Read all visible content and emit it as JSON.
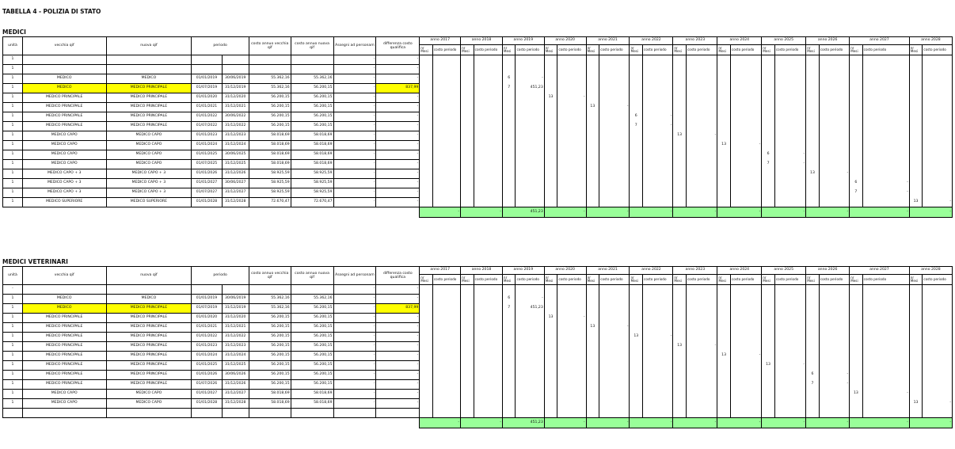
{
  "title": "TABELLA 4 - POLIZIA DI STATO",
  "years": [
    "anno 2017",
    "anno 2018",
    "anno 2019",
    "anno 2020",
    "anno 2021",
    "anno 2022",
    "anno 2023",
    "anno 2024",
    "anno 2025",
    "anno 2026",
    "anno 2027",
    "anno 2028"
  ],
  "headers": {
    "unita": "unità",
    "vecchia": "vecchia qif",
    "nuova": "nuova qif",
    "periodo": "periodo",
    "costo_vecchia": "costo annuo vecchia qif",
    "costo_nuova": "costo annuo nuova qif",
    "assegni": "Assegni ad personam",
    "differenza": "differenza costo qualifica",
    "mesi": "nr Mesi",
    "costo_periodo": "costo periodo"
  },
  "sections": [
    {
      "name": "MEDICI",
      "rows": [
        {
          "u": "1",
          "old": "",
          "new": "",
          "from": "",
          "to": "",
          "c_old": "",
          "c_new": "",
          "ass": "-",
          "diff": "-",
          "y": null,
          "m": "",
          "cp": ""
        },
        {
          "u": "1",
          "old": "",
          "new": "",
          "from": "",
          "to": "",
          "c_old": "",
          "c_new": "",
          "ass": "-",
          "diff": "-",
          "y": null,
          "m": "",
          "cp": ""
        },
        {
          "u": "1",
          "old": "MEDICO",
          "new": "MEDICO",
          "from": "01/01/2019",
          "to": "30/06/2019",
          "c_old": "55.362,16",
          "c_new": "55.362,16",
          "ass": "-",
          "diff": "-",
          "y": 2,
          "m": "6",
          "cp": "-"
        },
        {
          "u": "1",
          "old": "MEDICO",
          "new": "MEDICO PRINCIPALE",
          "from": "01/07/2019",
          "to": "31/12/2019",
          "c_old": "55.362,16",
          "c_new": "56.200,15",
          "ass": "-",
          "diff": "837,99",
          "y": 2,
          "m": "7",
          "cp": "451,23",
          "hl": true
        },
        {
          "u": "1",
          "old": "MEDICO PRINCIPALE",
          "new": "MEDICO PRINCIPALE",
          "from": "01/01/2020",
          "to": "31/12/2020",
          "c_old": "56.200,15",
          "c_new": "56.200,15",
          "ass": "-",
          "diff": "-",
          "y": 3,
          "m": "13",
          "cp": "-"
        },
        {
          "u": "1",
          "old": "MEDICO PRINCIPALE",
          "new": "MEDICO PRINCIPALE",
          "from": "01/01/2021",
          "to": "31/12/2021",
          "c_old": "56.200,15",
          "c_new": "56.200,15",
          "ass": "-",
          "diff": "-",
          "y": 4,
          "m": "13",
          "cp": "-"
        },
        {
          "u": "1",
          "old": "MEDICO PRINCIPALE",
          "new": "MEDICO PRINCIPALE",
          "from": "01/01/2022",
          "to": "30/06/2022",
          "c_old": "56.200,15",
          "c_new": "56.200,15",
          "ass": "-",
          "diff": "-",
          "y": 5,
          "m": "6",
          "cp": "-"
        },
        {
          "u": "1",
          "old": "MEDICO PRINCIPALE",
          "new": "MEDICO PRINCIPALE",
          "from": "01/07/2022",
          "to": "31/12/2022",
          "c_old": "56.200,15",
          "c_new": "56.200,15",
          "ass": "-",
          "diff": "-",
          "y": 5,
          "m": "7",
          "cp": "-"
        },
        {
          "u": "1",
          "old": "MEDICO CAPO",
          "new": "MEDICO CAPO",
          "from": "01/01/2023",
          "to": "31/12/2023",
          "c_old": "58.018,69",
          "c_new": "58.018,69",
          "ass": "-",
          "diff": "-",
          "y": 6,
          "m": "13",
          "cp": "-"
        },
        {
          "u": "1",
          "old": "MEDICO CAPO",
          "new": "MEDICO CAPO",
          "from": "01/01/2024",
          "to": "31/12/2024",
          "c_old": "58.018,69",
          "c_new": "58.018,69",
          "ass": "-",
          "diff": "-",
          "y": 7,
          "m": "13",
          "cp": "-"
        },
        {
          "u": "1",
          "old": "MEDICO CAPO",
          "new": "MEDICO CAPO",
          "from": "01/01/2025",
          "to": "30/06/2025",
          "c_old": "58.018,69",
          "c_new": "58.018,69",
          "ass": "-",
          "diff": "-",
          "y": 8,
          "m": "6",
          "cp": "-"
        },
        {
          "u": "1",
          "old": "MEDICO CAPO",
          "new": "MEDICO CAPO",
          "from": "01/07/2025",
          "to": "31/12/2025",
          "c_old": "58.018,69",
          "c_new": "58.018,69",
          "ass": "-",
          "diff": "-",
          "y": 8,
          "m": "7",
          "cp": "-"
        },
        {
          "u": "1",
          "old": "MEDICO CAPO + 3",
          "new": "MEDICO CAPO + 3",
          "from": "01/01/2026",
          "to": "31/12/2026",
          "c_old": "58.925,59",
          "c_new": "58.925,59",
          "ass": "-",
          "diff": "-",
          "y": 9,
          "m": "13",
          "cp": "-"
        },
        {
          "u": "1",
          "old": "MEDICO CAPO + 3",
          "new": "MEDICO CAPO + 3",
          "from": "01/01/2027",
          "to": "30/06/2027",
          "c_old": "58.925,59",
          "c_new": "58.925,59",
          "ass": "-",
          "diff": "-",
          "y": 10,
          "m": "6",
          "cp": "-"
        },
        {
          "u": "1",
          "old": "MEDICO CAPO + 3",
          "new": "MEDICO CAPO + 3",
          "from": "01/07/2027",
          "to": "31/12/2027",
          "c_old": "58.925,59",
          "c_new": "58.925,59",
          "ass": "-",
          "diff": "-",
          "y": 10,
          "m": "7",
          "cp": "-"
        },
        {
          "u": "1",
          "old": "MEDICO SUPERIORE",
          "new": "MEDICO SUPERIORE",
          "from": "01/01/2028",
          "to": "31/12/2028",
          "c_old": "72.670,47",
          "c_new": "72.670,47",
          "ass": "-",
          "diff": "-",
          "y": 11,
          "m": "13",
          "cp": "-"
        }
      ],
      "totals": [
        "-",
        "-",
        "451,23",
        "-",
        "-",
        "-",
        "-",
        "-",
        "-",
        "-",
        "-",
        "-"
      ]
    },
    {
      "name": "MEDICI VETERINARI",
      "rows": [
        {
          "u": "-",
          "old": "",
          "new": "",
          "from": "",
          "to": "",
          "c_old": "",
          "c_new": "",
          "ass": "-",
          "diff": "-",
          "y": null,
          "m": "",
          "cp": ""
        },
        {
          "u": "1",
          "old": "MEDICO",
          "new": "MEDICO",
          "from": "01/01/2019",
          "to": "30/06/2019",
          "c_old": "55.362,16",
          "c_new": "55.362,16",
          "ass": "-",
          "diff": "-",
          "y": 2,
          "m": "6",
          "cp": "-"
        },
        {
          "u": "1",
          "old": "MEDICO",
          "new": "MEDICO PRINCIPALE",
          "from": "01/07/2019",
          "to": "31/12/2019",
          "c_old": "55.362,16",
          "c_new": "56.200,15",
          "ass": "-",
          "diff": "837,99",
          "y": 2,
          "m": "7",
          "cp": "451,23",
          "hl": true
        },
        {
          "u": "1",
          "old": "MEDICO PRINCIPALE",
          "new": "MEDICO PRINCIPALE",
          "from": "01/01/2020",
          "to": "31/12/2020",
          "c_old": "56.200,15",
          "c_new": "56.200,15",
          "ass": "-",
          "diff": "-",
          "y": 3,
          "m": "13",
          "cp": "-"
        },
        {
          "u": "1",
          "old": "MEDICO PRINCIPALE",
          "new": "MEDICO PRINCIPALE",
          "from": "01/01/2021",
          "to": "31/12/2021",
          "c_old": "56.200,15",
          "c_new": "56.200,15",
          "ass": "-",
          "diff": "-",
          "y": 4,
          "m": "13",
          "cp": "-"
        },
        {
          "u": "1",
          "old": "MEDICO PRINCIPALE",
          "new": "MEDICO PRINCIPALE",
          "from": "01/01/2022",
          "to": "31/12/2022",
          "c_old": "56.200,15",
          "c_new": "56.200,15",
          "ass": "-",
          "diff": "-",
          "y": 5,
          "m": "13",
          "cp": "-"
        },
        {
          "u": "1",
          "old": "MEDICO PRINCIPALE",
          "new": "MEDICO PRINCIPALE",
          "from": "01/01/2023",
          "to": "31/12/2023",
          "c_old": "56.200,15",
          "c_new": "56.200,15",
          "ass": "-",
          "diff": "-",
          "y": 6,
          "m": "13",
          "cp": "-"
        },
        {
          "u": "1",
          "old": "MEDICO PRINCIPALE",
          "new": "MEDICO PRINCIPALE",
          "from": "01/01/2024",
          "to": "31/12/2024",
          "c_old": "56.200,15",
          "c_new": "56.200,15",
          "ass": "-",
          "diff": "-",
          "y": 7,
          "m": "13",
          "cp": "-"
        },
        {
          "u": "1",
          "old": "MEDICO PRINCIPALE",
          "new": "MEDICO PRINCIPALE",
          "from": "01/01/2025",
          "to": "31/12/2025",
          "c_old": "56.200,15",
          "c_new": "56.200,15",
          "ass": "-",
          "diff": "-",
          "y": 8,
          "m": "13",
          "cp": "-"
        },
        {
          "u": "1",
          "old": "MEDICO PRINCIPALE",
          "new": "MEDICO PRINCIPALE",
          "from": "01/01/2026",
          "to": "30/06/2026",
          "c_old": "56.200,15",
          "c_new": "56.200,15",
          "ass": "-",
          "diff": "-",
          "y": 9,
          "m": "6",
          "cp": "-"
        },
        {
          "u": "1",
          "old": "MEDICO PRINCIPALE",
          "new": "MEDICO PRINCIPALE",
          "from": "01/07/2026",
          "to": "31/12/2026",
          "c_old": "56.200,15",
          "c_new": "56.200,15",
          "ass": "-",
          "diff": "-",
          "y": 9,
          "m": "7",
          "cp": "-"
        },
        {
          "u": "1",
          "old": "MEDICO CAPO",
          "new": "MEDICO CAPO",
          "from": "01/01/2027",
          "to": "31/12/2027",
          "c_old": "58.018,69",
          "c_new": "58.018,69",
          "ass": "-",
          "diff": "-",
          "y": 10,
          "m": "13",
          "cp": "-"
        },
        {
          "u": "1",
          "old": "MEDICO CAPO",
          "new": "MEDICO CAPO",
          "from": "01/01/2028",
          "to": "31/12/2028",
          "c_old": "58.018,69",
          "c_new": "58.018,69",
          "ass": "-",
          "diff": "-",
          "y": 11,
          "m": "13",
          "cp": "-"
        },
        {
          "u": "",
          "old": "",
          "new": "",
          "from": "",
          "to": "",
          "c_old": "",
          "c_new": "",
          "ass": "",
          "diff": "",
          "y": null,
          "m": "",
          "cp": ""
        }
      ],
      "totals": [
        "-",
        "-",
        "451,23",
        "-",
        "-",
        "-",
        "-",
        "-",
        "-",
        "-",
        "-",
        "-"
      ]
    }
  ]
}
